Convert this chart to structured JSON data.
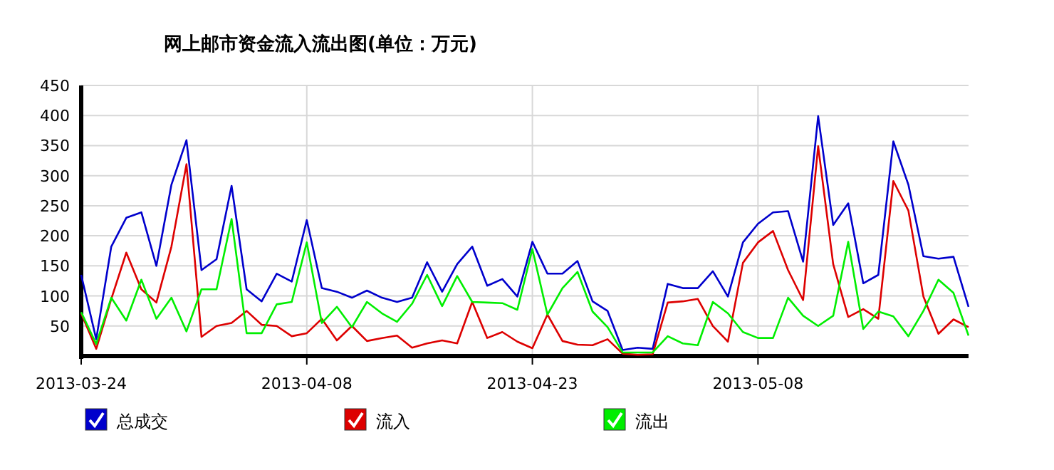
{
  "chart_data": {
    "type": "line",
    "title": "网上邮市资金流入流出图(单位：万元)",
    "x": [
      "2013-03-24",
      "2013-03-25",
      "2013-03-26",
      "2013-03-27",
      "2013-03-28",
      "2013-03-29",
      "2013-03-30",
      "2013-03-31",
      "2013-04-01",
      "2013-04-02",
      "2013-04-03",
      "2013-04-04",
      "2013-04-05",
      "2013-04-06",
      "2013-04-07",
      "2013-04-08",
      "2013-04-09",
      "2013-04-10",
      "2013-04-11",
      "2013-04-12",
      "2013-04-13",
      "2013-04-14",
      "2013-04-15",
      "2013-04-16",
      "2013-04-17",
      "2013-04-18",
      "2013-04-19",
      "2013-04-20",
      "2013-04-21",
      "2013-04-22",
      "2013-04-23",
      "2013-04-24",
      "2013-04-25",
      "2013-04-26",
      "2013-04-27",
      "2013-04-28",
      "2013-04-29",
      "2013-04-30",
      "2013-05-01",
      "2013-05-02",
      "2013-05-03",
      "2013-05-04",
      "2013-05-05",
      "2013-05-06",
      "2013-05-07",
      "2013-05-08",
      "2013-05-09",
      "2013-05-10",
      "2013-05-11",
      "2013-05-12",
      "2013-05-13",
      "2013-05-14",
      "2013-05-15",
      "2013-05-16",
      "2013-05-17",
      "2013-05-18",
      "2013-05-19",
      "2013-05-20",
      "2013-05-21",
      "2013-05-22"
    ],
    "series": [
      {
        "name": "总成交",
        "color": "#0000cc",
        "values": [
          135,
          28,
          182,
          230,
          239,
          150,
          285,
          359,
          143,
          161,
          283,
          111,
          91,
          137,
          124,
          226,
          113,
          107,
          97,
          109,
          97,
          90,
          97,
          156,
          107,
          153,
          182,
          117,
          128,
          99,
          190,
          137,
          137,
          158,
          91,
          75,
          10,
          14,
          12,
          120,
          113,
          113,
          141,
          99,
          189,
          220,
          239,
          241,
          157,
          399,
          218,
          254,
          121,
          135,
          357,
          285,
          166,
          162,
          165,
          82
        ]
      },
      {
        "name": "流入",
        "color": "#dd0000",
        "values": [
          71,
          12,
          95,
          172,
          111,
          89,
          182,
          319,
          32,
          50,
          55,
          75,
          52,
          50,
          33,
          38,
          62,
          26,
          50,
          25,
          30,
          34,
          14,
          21,
          26,
          21,
          90,
          30,
          40,
          24,
          13,
          69,
          25,
          19,
          18,
          28,
          4,
          2,
          3,
          89,
          91,
          95,
          50,
          24,
          155,
          189,
          208,
          143,
          93,
          349,
          153,
          65,
          78,
          62,
          291,
          242,
          99,
          37,
          61,
          48
        ]
      },
      {
        "name": "流出",
        "color": "#00ee00",
        "values": [
          73,
          20,
          97,
          59,
          127,
          62,
          97,
          41,
          111,
          111,
          228,
          38,
          38,
          86,
          90,
          189,
          55,
          82,
          48,
          90,
          71,
          57,
          87,
          135,
          83,
          133,
          90,
          89,
          88,
          77,
          178,
          69,
          113,
          140,
          74,
          48,
          6,
          6,
          6,
          33,
          21,
          18,
          90,
          71,
          40,
          30,
          30,
          97,
          67,
          50,
          67,
          190,
          45,
          74,
          66,
          33,
          75,
          127,
          105,
          34
        ]
      }
    ],
    "xlim": [
      "2013-03-24",
      "2013-05-22"
    ],
    "xticks": [
      "2013-03-24",
      "2013-04-08",
      "2013-04-23",
      "2013-05-08"
    ],
    "ylim": [
      0,
      450
    ],
    "yticks": [
      50,
      100,
      150,
      200,
      250,
      300,
      350,
      400,
      450
    ],
    "grid": true,
    "legend": "bottom",
    "marker": "none",
    "line_style": "solid"
  }
}
